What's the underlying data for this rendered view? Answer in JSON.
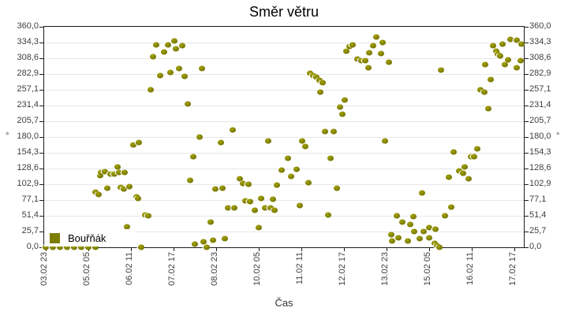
{
  "title": "Směr větru",
  "x_axis": {
    "label": "Čas",
    "tick_labels": [
      "03.02 23",
      "05.02 05",
      "06.02 11",
      "07.02 17",
      "08.02 23",
      "10.02 05",
      "11.02 11",
      "12.02 17",
      "13.02 23",
      "15.02 05",
      "16.02 11",
      "17.02 17"
    ]
  },
  "y_axis": {
    "unit": "°",
    "tick_labels": [
      "360,0",
      "334,3",
      "308,6",
      "282,9",
      "257,1",
      "231,4",
      "205,7",
      "180,0",
      "154,3",
      "128,6",
      "102,9",
      "77,1",
      "51,4",
      "25,7",
      "0,0"
    ],
    "unit_row_label": "180,0"
  },
  "legend": {
    "label": "Bouřňák"
  },
  "colors": {
    "marker": "#7d7d00",
    "marker_highlight": "#a8a800",
    "grid": "#e7e7e7",
    "frame": "#1c1c1c",
    "tick_label": "#3f3f3f",
    "background": "#ffffff"
  },
  "chart_data": {
    "type": "scatter",
    "title": "Směr větru",
    "xlabel": "Čas",
    "ylabel": "°",
    "ylim": [
      0,
      360
    ],
    "y_tick_step": 25.714,
    "grid": true,
    "legend_position": "bottom-left",
    "x_tick_labels": [
      "03.02 23",
      "05.02 05",
      "06.02 11",
      "07.02 17",
      "08.02 23",
      "10.02 05",
      "11.02 11",
      "12.02 17",
      "13.02 23",
      "15.02 05",
      "16.02 11",
      "17.02 17"
    ],
    "series": [
      {
        "name": "Bouřňák",
        "points_format": "[x_fraction_of_time_axis, wind_direction_deg]",
        "points": [
          [
            0.003,
            0
          ],
          [
            0.018,
            0
          ],
          [
            0.033,
            0
          ],
          [
            0.048,
            0
          ],
          [
            0.063,
            0
          ],
          [
            0.077,
            0
          ],
          [
            0.092,
            0
          ],
          [
            0.107,
            0
          ],
          [
            0.202,
            0
          ],
          [
            0.107,
            90
          ],
          [
            0.113,
            86
          ],
          [
            0.117,
            117
          ],
          [
            0.118,
            122
          ],
          [
            0.127,
            123
          ],
          [
            0.132,
            96
          ],
          [
            0.138,
            120
          ],
          [
            0.146,
            120
          ],
          [
            0.153,
            131
          ],
          [
            0.157,
            122
          ],
          [
            0.16,
            98
          ],
          [
            0.166,
            95
          ],
          [
            0.168,
            122
          ],
          [
            0.173,
            33
          ],
          [
            0.178,
            99
          ],
          [
            0.186,
            167
          ],
          [
            0.192,
            82
          ],
          [
            0.196,
            80
          ],
          [
            0.197,
            171
          ],
          [
            0.211,
            53
          ],
          [
            0.217,
            51
          ],
          [
            0.222,
            257
          ],
          [
            0.227,
            311
          ],
          [
            0.234,
            330
          ],
          [
            0.242,
            280
          ],
          [
            0.25,
            319
          ],
          [
            0.258,
            330
          ],
          [
            0.263,
            285
          ],
          [
            0.271,
            337
          ],
          [
            0.275,
            324
          ],
          [
            0.281,
            292
          ],
          [
            0.288,
            329
          ],
          [
            0.293,
            279
          ],
          [
            0.299,
            234
          ],
          [
            0.324,
            180
          ],
          [
            0.329,
            292
          ],
          [
            0.304,
            109
          ],
          [
            0.311,
            148
          ],
          [
            0.314,
            5
          ],
          [
            0.332,
            9
          ],
          [
            0.339,
            0
          ],
          [
            0.347,
            41
          ],
          [
            0.352,
            12
          ],
          [
            0.357,
            95
          ],
          [
            0.368,
            171
          ],
          [
            0.372,
            96
          ],
          [
            0.377,
            14
          ],
          [
            0.383,
            64
          ],
          [
            0.393,
            192
          ],
          [
            0.396,
            64
          ],
          [
            0.408,
            112
          ],
          [
            0.414,
            104
          ],
          [
            0.419,
            76
          ],
          [
            0.426,
            103
          ],
          [
            0.429,
            75
          ],
          [
            0.439,
            60
          ],
          [
            0.447,
            32
          ],
          [
            0.452,
            80
          ],
          [
            0.461,
            64
          ],
          [
            0.467,
            174
          ],
          [
            0.472,
            64
          ],
          [
            0.477,
            78
          ],
          [
            0.48,
            60
          ],
          [
            0.485,
            102
          ],
          [
            0.495,
            126
          ],
          [
            0.508,
            145
          ],
          [
            0.515,
            116
          ],
          [
            0.526,
            127
          ],
          [
            0.533,
            68
          ],
          [
            0.538,
            174
          ],
          [
            0.544,
            165
          ],
          [
            0.551,
            105
          ],
          [
            0.554,
            284
          ],
          [
            0.561,
            280
          ],
          [
            0.567,
            278
          ],
          [
            0.574,
            273
          ],
          [
            0.576,
            253
          ],
          [
            0.581,
            269
          ],
          [
            0.586,
            189
          ],
          [
            0.592,
            53
          ],
          [
            0.597,
            145
          ],
          [
            0.604,
            189
          ],
          [
            0.61,
            96
          ],
          [
            0.617,
            229
          ],
          [
            0.622,
            217
          ],
          [
            0.627,
            240
          ],
          [
            0.63,
            320
          ],
          [
            0.637,
            328
          ],
          [
            0.643,
            330
          ],
          [
            0.653,
            307
          ],
          [
            0.661,
            305
          ],
          [
            0.669,
            305
          ],
          [
            0.676,
            293
          ],
          [
            0.678,
            318
          ],
          [
            0.686,
            329
          ],
          [
            0.692,
            343
          ],
          [
            0.702,
            316
          ],
          [
            0.706,
            334
          ],
          [
            0.711,
            174
          ],
          [
            0.719,
            302
          ],
          [
            0.724,
            21
          ],
          [
            0.725,
            10
          ],
          [
            0.735,
            51
          ],
          [
            0.738,
            15
          ],
          [
            0.747,
            41
          ],
          [
            0.758,
            10
          ],
          [
            0.763,
            37
          ],
          [
            0.77,
            50
          ],
          [
            0.771,
            26
          ],
          [
            0.783,
            14
          ],
          [
            0.788,
            89
          ],
          [
            0.791,
            26
          ],
          [
            0.803,
            32
          ],
          [
            0.803,
            15
          ],
          [
            0.814,
            6
          ],
          [
            0.816,
            30
          ],
          [
            0.819,
            3
          ],
          [
            0.824,
            0
          ],
          [
            0.827,
            289
          ],
          [
            0.836,
            51
          ],
          [
            0.844,
            114
          ],
          [
            0.849,
            66
          ],
          [
            0.854,
            156
          ],
          [
            0.865,
            125
          ],
          [
            0.873,
            121
          ],
          [
            0.877,
            131
          ],
          [
            0.885,
            112
          ],
          [
            0.89,
            148
          ],
          [
            0.896,
            148
          ],
          [
            0.903,
            161
          ],
          [
            0.91,
            257
          ],
          [
            0.918,
            253
          ],
          [
            0.92,
            298
          ],
          [
            0.926,
            226
          ],
          [
            0.931,
            274
          ],
          [
            0.936,
            329
          ],
          [
            0.942,
            320
          ],
          [
            0.946,
            315
          ],
          [
            0.951,
            312
          ],
          [
            0.956,
            332
          ],
          [
            0.961,
            298
          ],
          [
            0.967,
            306
          ],
          [
            0.972,
            339
          ],
          [
            0.985,
            338
          ],
          [
            0.985,
            293
          ],
          [
            0.993,
            305
          ],
          [
            0.995,
            332
          ]
        ]
      }
    ]
  }
}
